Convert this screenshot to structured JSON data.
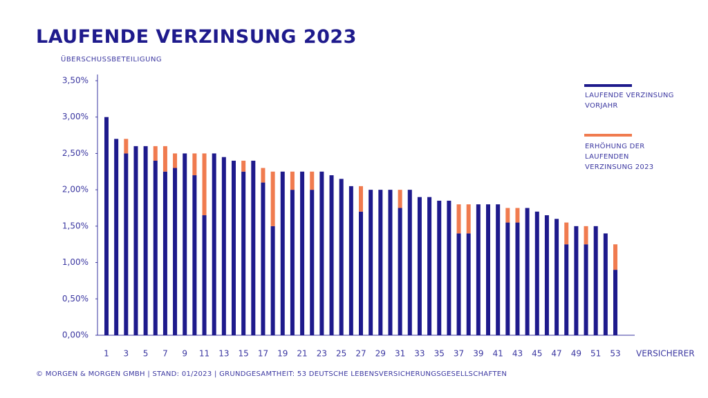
{
  "chart_data": {
    "type": "stacked_bar",
    "title": "LAUFENDE VERZINSUNG 2023",
    "y_axis_label": "ÜBERSCHUSSBETEILIGUNG",
    "x_axis_label": "VERSICHERER",
    "footer": "© MORGEN & MORGEN GMBH | STAND: 01/2023 | GRUNDGESAMTHEIT: 53 DEUTSCHE LEBENSVERSICHERUNGSGESELLSCHAFTEN",
    "categories": [
      "1",
      null,
      "3",
      null,
      "5",
      null,
      "7",
      null,
      "9",
      null,
      "11",
      null,
      "13",
      null,
      "15",
      null,
      "17",
      null,
      "19",
      null,
      "21",
      null,
      "23",
      null,
      "25",
      null,
      "27",
      null,
      "29",
      null,
      "31",
      null,
      "33",
      null,
      "35",
      null,
      "37",
      null,
      "39",
      null,
      "41",
      null,
      "43",
      null,
      "45",
      null,
      "47",
      null,
      "49",
      null,
      "51",
      null,
      "53"
    ],
    "series": [
      {
        "name": "LAUFENDE VERZINSUNG VORJAHR",
        "color": "#1e1a8c",
        "values": [
          3.0,
          2.7,
          2.5,
          2.6,
          2.6,
          2.4,
          2.25,
          2.3,
          2.5,
          2.2,
          1.65,
          2.5,
          2.45,
          2.4,
          2.25,
          2.4,
          2.1,
          1.5,
          2.25,
          2.0,
          2.25,
          2.0,
          2.25,
          2.2,
          2.15,
          2.05,
          1.7,
          2.0,
          2.0,
          2.0,
          1.75,
          2.0,
          1.9,
          1.9,
          1.85,
          1.85,
          1.4,
          1.4,
          1.8,
          1.8,
          1.8,
          1.55,
          1.55,
          1.75,
          1.7,
          1.65,
          1.6,
          1.25,
          1.5,
          1.25,
          1.5,
          1.4,
          0.9
        ]
      },
      {
        "name": "ERHÖHUNG DER LAUFENDEN VERZINSUNG 2023",
        "color": "#f07b4f",
        "values": [
          0,
          0,
          0.2,
          0,
          0,
          0.2,
          0.35,
          0.2,
          0,
          0.3,
          0.85,
          0,
          0,
          0,
          0.15,
          0,
          0.2,
          0.75,
          0,
          0.25,
          0,
          0.25,
          0,
          0,
          0,
          0,
          0.35,
          0,
          0,
          0,
          0.25,
          0,
          0,
          0,
          0,
          0,
          0.4,
          0.4,
          0,
          0,
          0,
          0.2,
          0.2,
          0,
          0,
          0,
          0,
          0.3,
          0,
          0.25,
          0,
          0,
          0.35
        ]
      }
    ],
    "ylim": [
      0,
      3.5
    ],
    "yticks": [
      {
        "value": 0,
        "label": "0,00%"
      },
      {
        "value": 0.5,
        "label": "0,50%"
      },
      {
        "value": 1,
        "label": "1,00%"
      },
      {
        "value": 1.5,
        "label": "1,50%"
      },
      {
        "value": 2,
        "label": "2,00%"
      },
      {
        "value": 2.5,
        "label": "2,50%"
      },
      {
        "value": 3,
        "label": "3,00%"
      },
      {
        "value": 3.5,
        "label": "3,50%"
      }
    ],
    "legend": "right"
  }
}
